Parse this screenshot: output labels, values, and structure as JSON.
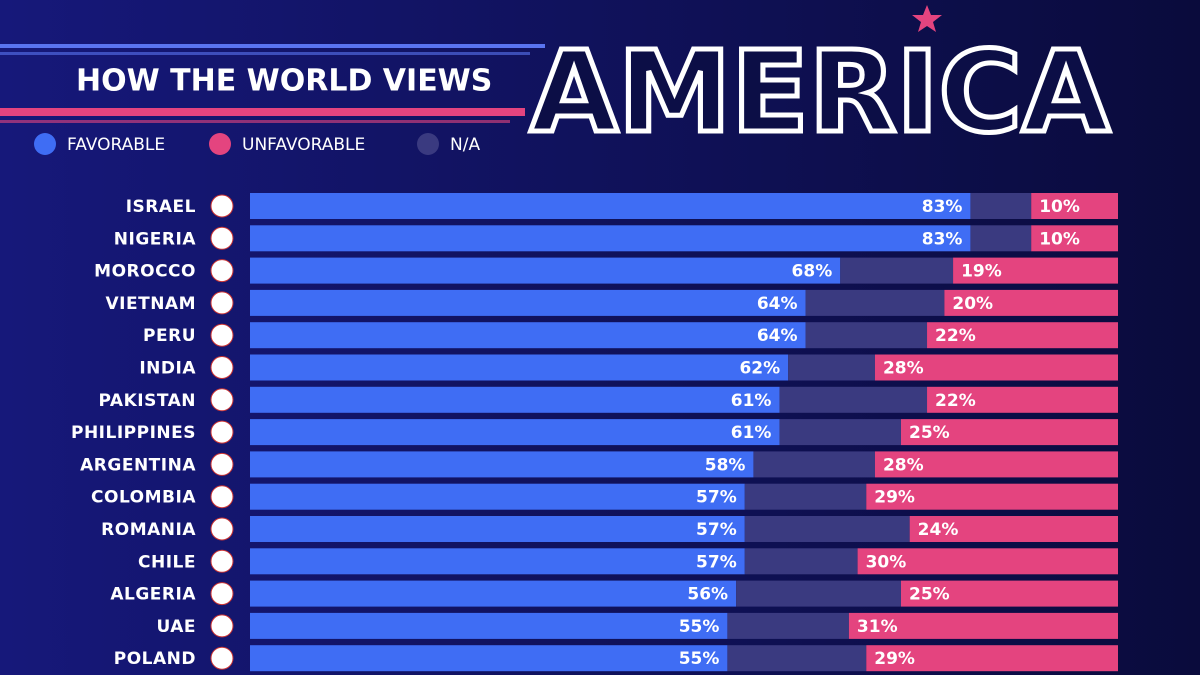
{
  "chart_data": {
    "type": "stacked-bar-horizontal",
    "title": "HOW THE WORLD VIEWS",
    "subtitle": "AMERICA",
    "categories": [
      "ISRAEL",
      "NIGERIA",
      "MOROCCO",
      "VIETNAM",
      "PERU",
      "INDIA",
      "PAKISTAN",
      "PHILIPPINES",
      "ARGENTINA",
      "COLOMBIA",
      "ROMANIA",
      "CHILE",
      "ALGERIA",
      "UAE",
      "POLAND"
    ],
    "xlim": [
      0,
      100
    ],
    "series": [
      {
        "name": "FAVORABLE",
        "color": "#3f6df4",
        "values": [
          83,
          83,
          68,
          64,
          64,
          62,
          61,
          61,
          58,
          57,
          57,
          57,
          56,
          55,
          55
        ],
        "value_labels": [
          "83%",
          "83%",
          "68%",
          "64%",
          "64%",
          "62%",
          "61%",
          "61%",
          "58%",
          "57%",
          "57%",
          "57%",
          "56%",
          "55%",
          "55%"
        ]
      },
      {
        "name": "UNFAVORABLE",
        "color": "#e4447f",
        "values": [
          10,
          10,
          19,
          20,
          22,
          28,
          22,
          25,
          28,
          29,
          24,
          30,
          25,
          31,
          29
        ],
        "value_labels": [
          "10%",
          "10%",
          "19%",
          "20%",
          "22%",
          "28%",
          "22%",
          "25%",
          "28%",
          "29%",
          "24%",
          "30%",
          "25%",
          "31%",
          "29%"
        ]
      },
      {
        "name": "N/A",
        "color": "#3a3a80",
        "values": [
          7,
          7,
          13,
          16,
          14,
          10,
          17,
          14,
          14,
          14,
          19,
          13,
          19,
          14,
          16
        ]
      }
    ]
  }
}
